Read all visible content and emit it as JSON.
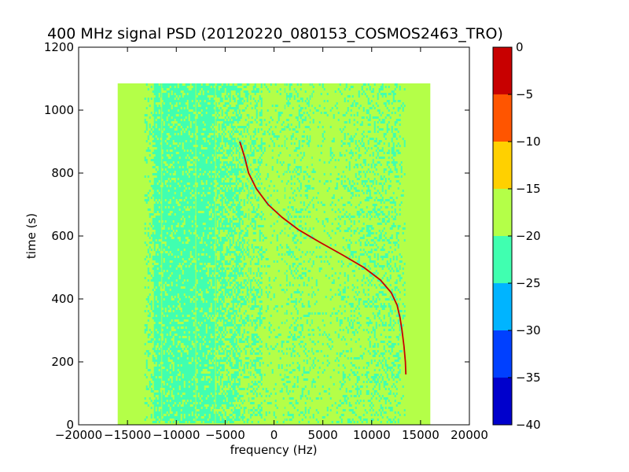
{
  "chart_data": {
    "type": "heatmap",
    "title": "400 MHz signal PSD (20120220_080153_COSMOS2463_TRO)",
    "xlabel": "frequency (Hz)",
    "ylabel": "time (s)",
    "xlim": [
      -20000,
      20000
    ],
    "ylim": [
      0,
      1200
    ],
    "xticks": [
      -20000,
      -15000,
      -10000,
      -5000,
      0,
      5000,
      10000,
      15000,
      20000
    ],
    "xtick_labels": [
      "−20000",
      "−15000",
      "−10000",
      "−5000",
      "0",
      "5000",
      "10000",
      "15000",
      "20000"
    ],
    "yticks": [
      0,
      200,
      400,
      600,
      800,
      1000,
      1200
    ],
    "ytick_labels": [
      "0",
      "200",
      "400",
      "600",
      "800",
      "1000",
      "1200"
    ],
    "data_extent": {
      "freq": [
        -16000,
        16000
      ],
      "time": [
        0,
        1085
      ]
    },
    "background_level_range": [
      -25,
      -15
    ],
    "signal_track": {
      "level": -5,
      "points": [
        {
          "t": 900,
          "f": -3500
        },
        {
          "t": 850,
          "f": -3000
        },
        {
          "t": 800,
          "f": -2600
        },
        {
          "t": 750,
          "f": -1800
        },
        {
          "t": 700,
          "f": -600
        },
        {
          "t": 660,
          "f": 800
        },
        {
          "t": 620,
          "f": 2500
        },
        {
          "t": 580,
          "f": 4700
        },
        {
          "t": 540,
          "f": 7000
        },
        {
          "t": 500,
          "f": 9200
        },
        {
          "t": 460,
          "f": 10900
        },
        {
          "t": 420,
          "f": 12000
        },
        {
          "t": 380,
          "f": 12600
        },
        {
          "t": 340,
          "f": 12900
        },
        {
          "t": 300,
          "f": 13100
        },
        {
          "t": 250,
          "f": 13300
        },
        {
          "t": 200,
          "f": 13450
        },
        {
          "t": 160,
          "f": 13500
        }
      ]
    },
    "colorbar": {
      "min": -40,
      "max": 0,
      "ticks": [
        0,
        -5,
        -10,
        -15,
        -20,
        -25,
        -30,
        -35,
        -40
      ],
      "tick_labels": [
        "0",
        "−5",
        "−10",
        "−15",
        "−20",
        "−25",
        "−30",
        "−35",
        "−40"
      ],
      "bands": [
        {
          "from": -40,
          "to": -35,
          "color": "#0000cc"
        },
        {
          "from": -35,
          "to": -30,
          "color": "#0040ff"
        },
        {
          "from": -30,
          "to": -25,
          "color": "#00b4ff"
        },
        {
          "from": -25,
          "to": -20,
          "color": "#40ffb0"
        },
        {
          "from": -20,
          "to": -15,
          "color": "#b4ff48"
        },
        {
          "from": -15,
          "to": -10,
          "color": "#ffd000"
        },
        {
          "from": -10,
          "to": -5,
          "color": "#ff5500"
        },
        {
          "from": -5,
          "to": 0,
          "color": "#c80000"
        }
      ]
    },
    "grid": false,
    "legend": "none"
  }
}
